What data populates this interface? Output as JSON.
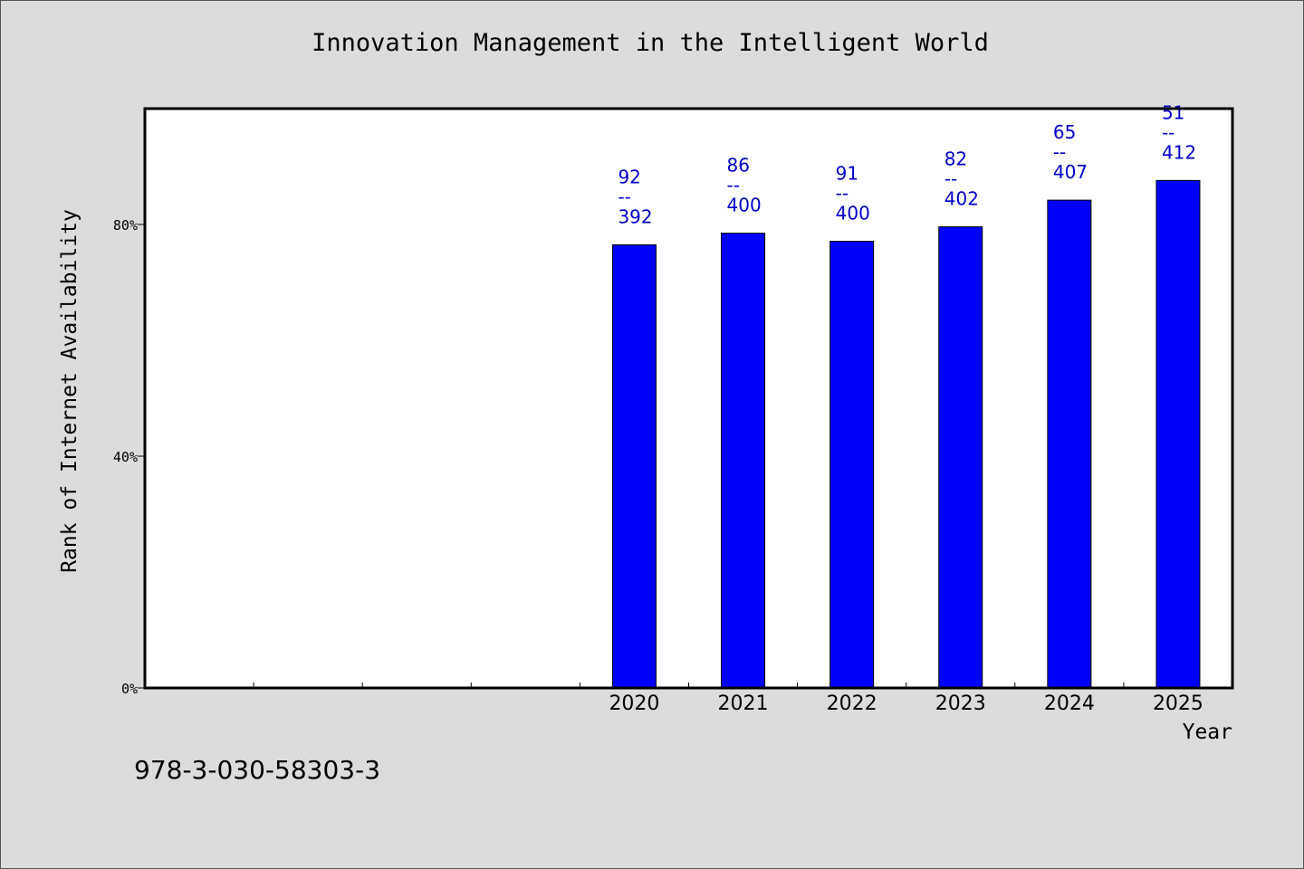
{
  "chart_data": {
    "type": "bar",
    "title": "Innovation Management in the Intelligent World",
    "xlabel": "Year",
    "ylabel": "Rank of Internet Availability",
    "categories": [
      "",
      "",
      "",
      "",
      "2020",
      "2021",
      "2022",
      "2023",
      "2024",
      "2025"
    ],
    "values": [
      null,
      null,
      null,
      null,
      76.5,
      78.5,
      77.1,
      79.6,
      84.2,
      87.6
    ],
    "data_labels": [
      {
        "top": "92",
        "sep": "--",
        "bottom": "392"
      },
      {
        "top": "86",
        "sep": "--",
        "bottom": "400"
      },
      {
        "top": "91",
        "sep": "--",
        "bottom": "400"
      },
      {
        "top": "82",
        "sep": "--",
        "bottom": "402"
      },
      {
        "top": "65",
        "sep": "--",
        "bottom": "407"
      },
      {
        "top": "51",
        "sep": "--",
        "bottom": "412"
      }
    ],
    "yticks": [
      {
        "value": 0,
        "label": "0%"
      },
      {
        "value": 40,
        "label": "40%"
      },
      {
        "value": 80,
        "label": "80%"
      }
    ],
    "ylim": [
      0,
      100
    ],
    "grid": false,
    "legend": "none",
    "colors": {
      "bar": "#0000ff",
      "label": "#0000cc",
      "plot_bg": "#ffffff",
      "page_bg": "#dcdcdc"
    }
  },
  "footer": {
    "isbn": "978-3-030-58303-3"
  }
}
